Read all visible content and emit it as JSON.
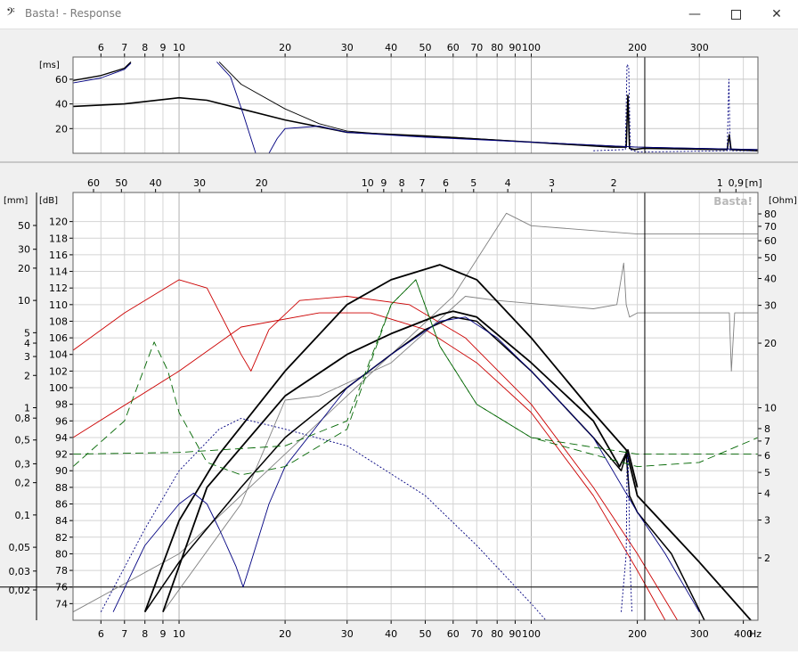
{
  "window": {
    "title": "Basta! - Response",
    "icon": "bass-clef-icon",
    "controls": [
      "minimize-icon",
      "maximize-icon",
      "close-icon"
    ]
  },
  "chart_data": [
    {
      "id": "delay",
      "type": "line",
      "xscale": "log",
      "xlim": [
        5,
        440
      ],
      "ylim": [
        0,
        78
      ],
      "ylabel": "[ms]",
      "x_ticks_top": [
        6,
        7,
        8,
        9,
        10,
        20,
        30,
        40,
        50,
        60,
        70,
        80,
        90,
        100,
        200,
        300
      ],
      "y_ticks": [
        20,
        40,
        60
      ],
      "marker_x": 210,
      "series": [
        {
          "color": "#000000",
          "width": 1.3,
          "dash": "",
          "points": [
            [
              5,
              59
            ],
            [
              6,
              63
            ],
            [
              7,
              69
            ],
            [
              7.3,
              74
            ]
          ]
        },
        {
          "color": "#000080",
          "width": 0.9,
          "dash": "",
          "points": [
            [
              5,
              57
            ],
            [
              6,
              61
            ],
            [
              7,
              68
            ],
            [
              7.3,
              73
            ]
          ]
        },
        {
          "color": "#000000",
          "width": 1.6,
          "dash": "",
          "points": [
            [
              5,
              38
            ],
            [
              7,
              40
            ],
            [
              10,
              45
            ],
            [
              12,
              43
            ],
            [
              15,
              36
            ],
            [
              20,
              27
            ],
            [
              30,
              17
            ],
            [
              50,
              14
            ],
            [
              100,
              9
            ],
            [
              170,
              5
            ],
            [
              186,
              5
            ],
            [
              188,
              47
            ],
            [
              190,
              4
            ],
            [
              196,
              3
            ],
            [
              208,
              4
            ],
            [
              360,
              3
            ],
            [
              365,
              15
            ],
            [
              369,
              3
            ],
            [
              440,
              2
            ]
          ]
        },
        {
          "color": "#000000",
          "width": 0.9,
          "dash": "",
          "points": [
            [
              13,
              74
            ],
            [
              15,
              56
            ],
            [
              20,
              36
            ],
            [
              25,
              24
            ],
            [
              30,
              18
            ],
            [
              40,
              15
            ],
            [
              60,
              13
            ],
            [
              100,
              9
            ],
            [
              200,
              5
            ],
            [
              440,
              3
            ]
          ]
        },
        {
          "color": "#000080",
          "width": 0.9,
          "dash": "",
          "points": [
            [
              12.8,
              74
            ],
            [
              14,
              62
            ],
            [
              15.2,
              32
            ],
            [
              16.5,
              0
            ]
          ]
        },
        {
          "color": "#000080",
          "width": 0.9,
          "dash": "",
          "points": [
            [
              18,
              0
            ],
            [
              19,
              12
            ],
            [
              20,
              20
            ],
            [
              25,
              22
            ],
            [
              30,
              17
            ],
            [
              50,
              13
            ],
            [
              100,
              9
            ],
            [
              200,
              5
            ],
            [
              440,
              3
            ]
          ]
        },
        {
          "color": "#000080",
          "width": 0.9,
          "dash": "2,2",
          "points": [
            [
              150,
              2
            ],
            [
              185,
              3
            ],
            [
              187,
              72
            ],
            [
              189,
              70
            ],
            [
              191,
              3
            ],
            [
              200,
              1
            ],
            [
              360,
              2
            ],
            [
              364,
              60
            ],
            [
              367,
              2
            ],
            [
              440,
              2
            ]
          ]
        }
      ]
    },
    {
      "id": "response",
      "type": "line",
      "xscale": "log",
      "xlim": [
        5,
        440
      ],
      "ylim": [
        72,
        123.5
      ],
      "ylabel": "[dB]",
      "xlabel": "Hz",
      "x_ticks_bottom": [
        6,
        7,
        8,
        9,
        10,
        20,
        30,
        40,
        50,
        60,
        70,
        80,
        90,
        100,
        200,
        300,
        400
      ],
      "y_ticks": [
        74,
        76,
        78,
        80,
        82,
        84,
        86,
        88,
        90,
        92,
        94,
        96,
        98,
        100,
        102,
        104,
        106,
        108,
        110,
        112,
        114,
        116,
        118,
        120
      ],
      "left_axis_label": "[mm]",
      "left_axis_ticks": [
        "50",
        "30",
        "20",
        "10",
        "5",
        "4",
        "3",
        "2",
        "1",
        "0,8",
        "0,5",
        "0,3",
        "0,2",
        "0,1",
        "0,05",
        "0,03",
        "0,02"
      ],
      "right_axis_label": "[Ohm]",
      "right_axis_ticks": [
        "80",
        "70",
        "60",
        "50",
        "40",
        "30",
        "20",
        "10",
        "8",
        "7",
        "6",
        "5",
        "4",
        "3",
        "2"
      ],
      "top_axis_label": "[m]",
      "top_axis_ticks": [
        "60",
        "50",
        "40",
        "30",
        "20",
        "10",
        "9",
        "8",
        "7",
        "6",
        "5",
        "4",
        "3",
        "2",
        "1",
        "0,9"
      ],
      "watermark": "Basta!",
      "marker_x": 210,
      "hline": 76,
      "series": [
        {
          "color": "#808080",
          "width": 0.9,
          "dash": "",
          "points": [
            [
              5,
              73
            ],
            [
              10,
              80
            ],
            [
              20,
              92
            ],
            [
              40,
              104
            ],
            [
              60,
              111
            ],
            [
              85,
              121
            ],
            [
              100,
              119.5
            ],
            [
              200,
              118.5
            ],
            [
              440,
              118.5
            ]
          ]
        },
        {
          "color": "#808080",
          "width": 0.9,
          "dash": "",
          "points": [
            [
              9,
              73
            ],
            [
              15,
              86
            ],
            [
              20,
              98.5
            ],
            [
              25,
              99
            ],
            [
              40,
              103
            ],
            [
              65,
              111
            ],
            [
              80,
              110.5
            ],
            [
              150,
              109.5
            ],
            [
              175,
              110
            ],
            [
              183,
              115
            ],
            [
              186,
              110
            ],
            [
              190,
              108.5
            ],
            [
              200,
              109
            ],
            [
              300,
              109
            ],
            [
              365,
              109
            ],
            [
              370,
              102
            ],
            [
              378,
              109
            ],
            [
              440,
              109
            ]
          ]
        },
        {
          "color": "#cc0000",
          "width": 0.9,
          "dash": "",
          "points": [
            [
              5,
              104.5
            ],
            [
              7,
              109
            ],
            [
              10,
              113
            ],
            [
              12,
              112
            ],
            [
              15,
              104
            ],
            [
              16,
              102
            ],
            [
              18,
              107
            ],
            [
              22,
              110.5
            ],
            [
              30,
              111
            ],
            [
              45,
              110
            ],
            [
              65,
              106
            ],
            [
              100,
              98
            ],
            [
              150,
              88
            ],
            [
              200,
              80
            ],
            [
              260,
              72
            ]
          ]
        },
        {
          "color": "#cc0000",
          "width": 0.9,
          "dash": "",
          "points": [
            [
              5,
              94
            ],
            [
              10,
              102
            ],
            [
              15,
              107.3
            ],
            [
              25,
              109
            ],
            [
              35,
              109
            ],
            [
              50,
              107
            ],
            [
              70,
              103
            ],
            [
              100,
              97
            ],
            [
              150,
              87
            ],
            [
              200,
              78
            ],
            [
              240,
              72
            ]
          ]
        },
        {
          "color": "#000000",
          "width": 1.8,
          "dash": "",
          "points": [
            [
              8,
              73
            ],
            [
              10,
              84
            ],
            [
              13,
              92
            ],
            [
              20,
              102
            ],
            [
              30,
              110
            ],
            [
              40,
              113
            ],
            [
              55,
              114.8
            ],
            [
              70,
              113
            ],
            [
              100,
              106
            ],
            [
              150,
              97
            ],
            [
              186,
              92.5
            ],
            [
              200,
              87
            ],
            [
              300,
              79
            ],
            [
              420,
              72
            ]
          ]
        },
        {
          "color": "#000000",
          "width": 1.5,
          "dash": "",
          "points": [
            [
              8,
              73
            ],
            [
              10,
              79
            ],
            [
              15,
              88
            ],
            [
              20,
              94
            ],
            [
              30,
              100
            ],
            [
              40,
              104
            ],
            [
              50,
              107
            ],
            [
              60,
              108.5
            ],
            [
              70,
              108
            ],
            [
              100,
              102
            ],
            [
              150,
              94
            ],
            [
              180,
              90
            ],
            [
              186,
              92
            ],
            [
              190,
              87
            ],
            [
              200,
              85
            ],
            [
              250,
              80
            ],
            [
              310,
              72
            ]
          ]
        },
        {
          "color": "#000000",
          "width": 1.8,
          "dash": "",
          "points": [
            [
              9,
              73
            ],
            [
              12,
              88
            ],
            [
              20,
              99
            ],
            [
              30,
              104
            ],
            [
              40,
              106.5
            ],
            [
              55,
              108.8
            ],
            [
              60,
              109.2
            ],
            [
              70,
              108.5
            ],
            [
              100,
              103
            ],
            [
              150,
              96
            ],
            [
              178,
              90.5
            ],
            [
              188,
              92.5
            ],
            [
              200,
              88
            ]
          ]
        },
        {
          "color": "#000080",
          "width": 0.9,
          "dash": "",
          "points": [
            [
              6.5,
              73
            ],
            [
              8,
              81
            ],
            [
              10,
              86
            ],
            [
              11,
              87.3
            ],
            [
              12,
              86
            ],
            [
              13,
              83
            ],
            [
              14.5,
              78.5
            ],
            [
              15.2,
              76
            ],
            [
              16,
              79
            ],
            [
              18,
              86
            ],
            [
              20,
              90.5
            ],
            [
              30,
              100
            ],
            [
              40,
              104
            ],
            [
              55,
              108
            ],
            [
              65,
              108.5
            ],
            [
              80,
              106
            ],
            [
              100,
              102
            ],
            [
              150,
              94
            ],
            [
              200,
              85
            ],
            [
              240,
              80
            ],
            [
              300,
              73
            ]
          ]
        },
        {
          "color": "#000080",
          "width": 0.9,
          "dash": "2,2",
          "points": [
            [
              6,
              73
            ],
            [
              8,
              83
            ],
            [
              10,
              90
            ],
            [
              13,
              95
            ],
            [
              15,
              96.3
            ],
            [
              20,
              95
            ],
            [
              30,
              93
            ],
            [
              50,
              87
            ],
            [
              70,
              81
            ],
            [
              100,
              74
            ],
            [
              110,
              72
            ]
          ]
        },
        {
          "color": "#000080",
          "width": 0.9,
          "dash": "2,2",
          "points": [
            [
              180,
              73
            ],
            [
              186,
              80
            ],
            [
              187,
              90
            ],
            [
              188,
              92
            ],
            [
              189,
              88
            ],
            [
              191,
              78
            ],
            [
              193,
              73
            ]
          ]
        },
        {
          "color": "#006600",
          "width": 0.9,
          "dash": "9,5",
          "points": [
            [
              5,
              92
            ],
            [
              10,
              92.2
            ],
            [
              20,
              93
            ],
            [
              30,
              96
            ],
            [
              40,
              110
            ],
            [
              47,
              113
            ],
            [
              55,
              105
            ],
            [
              70,
              98
            ],
            [
              100,
              94
            ],
            [
              200,
              90.5
            ],
            [
              300,
              91
            ],
            [
              440,
              94
            ]
          ]
        },
        {
          "color": "#006600",
          "width": 0.9,
          "dash": "9,5",
          "points": [
            [
              5,
              90.5
            ],
            [
              7,
              96
            ],
            [
              8.5,
              105.5
            ],
            [
              9.3,
              102
            ],
            [
              10,
              97
            ],
            [
              12,
              91
            ],
            [
              15,
              89.5
            ],
            [
              20,
              90.5
            ],
            [
              30,
              95
            ],
            [
              40,
              110
            ],
            [
              47,
              113
            ],
            [
              55,
              105
            ],
            [
              70,
              98
            ],
            [
              100,
              94
            ],
            [
              200,
              92
            ],
            [
              440,
              92
            ]
          ]
        }
      ]
    }
  ]
}
